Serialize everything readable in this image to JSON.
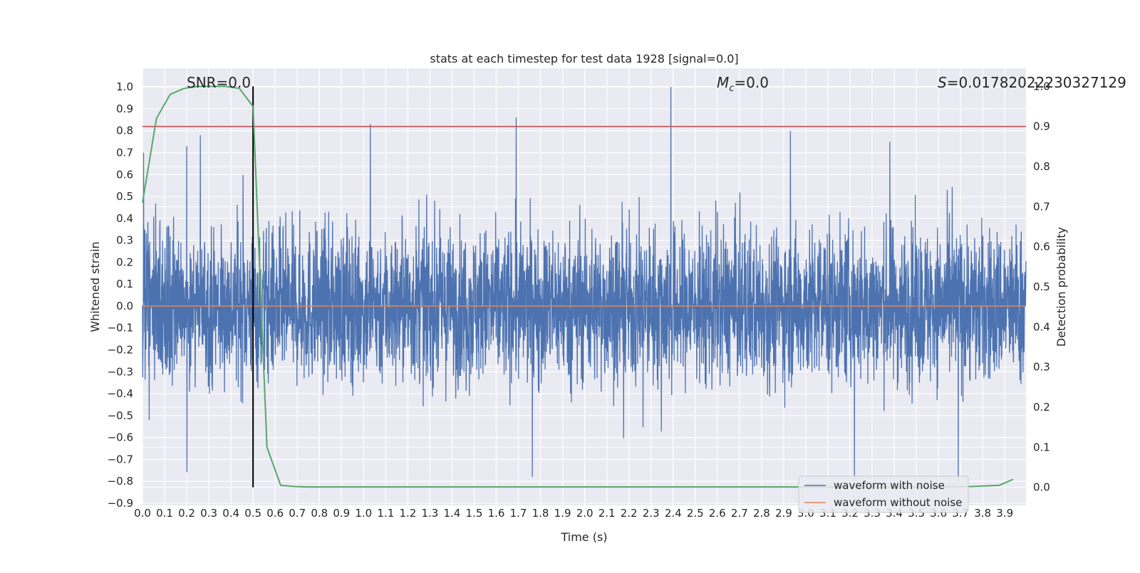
{
  "chart_data": {
    "type": "line",
    "title": "stats at each timestep for test data 1928 [signal=0.0]",
    "xlabel": "Time (s)",
    "ylabel": "Whitened strain",
    "ylabel_right": "Detection probability",
    "xlim": [
      0.0,
      3.996
    ],
    "ylim": [
      -0.91,
      1.085
    ],
    "ylim_right": [
      -0.045,
      1.045
    ],
    "x_ticks": [
      "0.0",
      "0.1",
      "0.2",
      "0.3",
      "0.4",
      "0.5",
      "0.6",
      "0.7",
      "0.8",
      "0.9",
      "1.0",
      "1.1",
      "1.2",
      "1.3",
      "1.4",
      "1.5",
      "1.6",
      "1.7",
      "1.8",
      "1.9",
      "2.0",
      "2.1",
      "2.2",
      "2.3",
      "2.4",
      "2.5",
      "2.6",
      "2.7",
      "2.8",
      "2.9",
      "3.0",
      "3.1",
      "3.2",
      "3.3",
      "3.4",
      "3.5",
      "3.6",
      "3.7",
      "3.8",
      "3.9"
    ],
    "y_ticks": [
      "−0.9",
      "−0.8",
      "−0.7",
      "−0.6",
      "−0.5",
      "−0.4",
      "−0.3",
      "−0.2",
      "−0.1",
      "0.0",
      "0.1",
      "0.2",
      "0.3",
      "0.4",
      "0.5",
      "0.6",
      "0.7",
      "0.8",
      "0.9",
      "1.0"
    ],
    "y_right_ticks": [
      "0.0",
      "0.1",
      "0.2",
      "0.3",
      "0.4",
      "0.5",
      "0.6",
      "0.7",
      "0.8",
      "0.9",
      "1.0"
    ],
    "annotations": {
      "snr": "SNR=0.0",
      "mc_symbol": "M",
      "mc_sub": "c",
      "mc_value": "=0.0",
      "s_symbol": "S",
      "s_value": "=0.01782022230327129"
    },
    "marker_line_x": 0.5,
    "threshold_prob": 0.9,
    "legend": [
      "waveform with noise",
      "waveform without noise"
    ],
    "legend_position": "lower right",
    "grid": true,
    "series": [
      {
        "name": "waveform with noise",
        "axis": "left",
        "color": "#4c72b0",
        "description": "dense noisy whitened-strain trace, roughly between -0.8 and 1.0",
        "peaks": [
          [
            0.005,
            0.7
          ],
          [
            0.2,
            0.73
          ],
          [
            1.03,
            0.83
          ],
          [
            1.69,
            0.86
          ],
          [
            2.39,
            1.0
          ],
          [
            2.93,
            0.8
          ],
          [
            3.22,
            -0.8
          ],
          [
            3.69,
            -0.8
          ],
          [
            3.38,
            0.75
          ],
          [
            0.03,
            -0.52
          ]
        ]
      },
      {
        "name": "waveform without noise",
        "axis": "left",
        "color": "#dd8452",
        "y": 0.0
      },
      {
        "name": "",
        "axis": "right",
        "color": "#55a868",
        "x": [
          0.0,
          0.063,
          0.125,
          0.188,
          0.25,
          0.313,
          0.375,
          0.438,
          0.5,
          0.563,
          0.625,
          0.688,
          0.75,
          1.0,
          1.5,
          2.0,
          2.5,
          3.0,
          3.5,
          3.75,
          3.875,
          3.938
        ],
        "y": [
          0.71,
          0.92,
          0.98,
          0.995,
          1.0,
          1.0,
          1.0,
          0.995,
          0.95,
          0.1,
          0.005,
          0.002,
          0.001,
          0.001,
          0.001,
          0.001,
          0.001,
          0.001,
          0.001,
          0.002,
          0.005,
          0.02
        ]
      }
    ]
  }
}
